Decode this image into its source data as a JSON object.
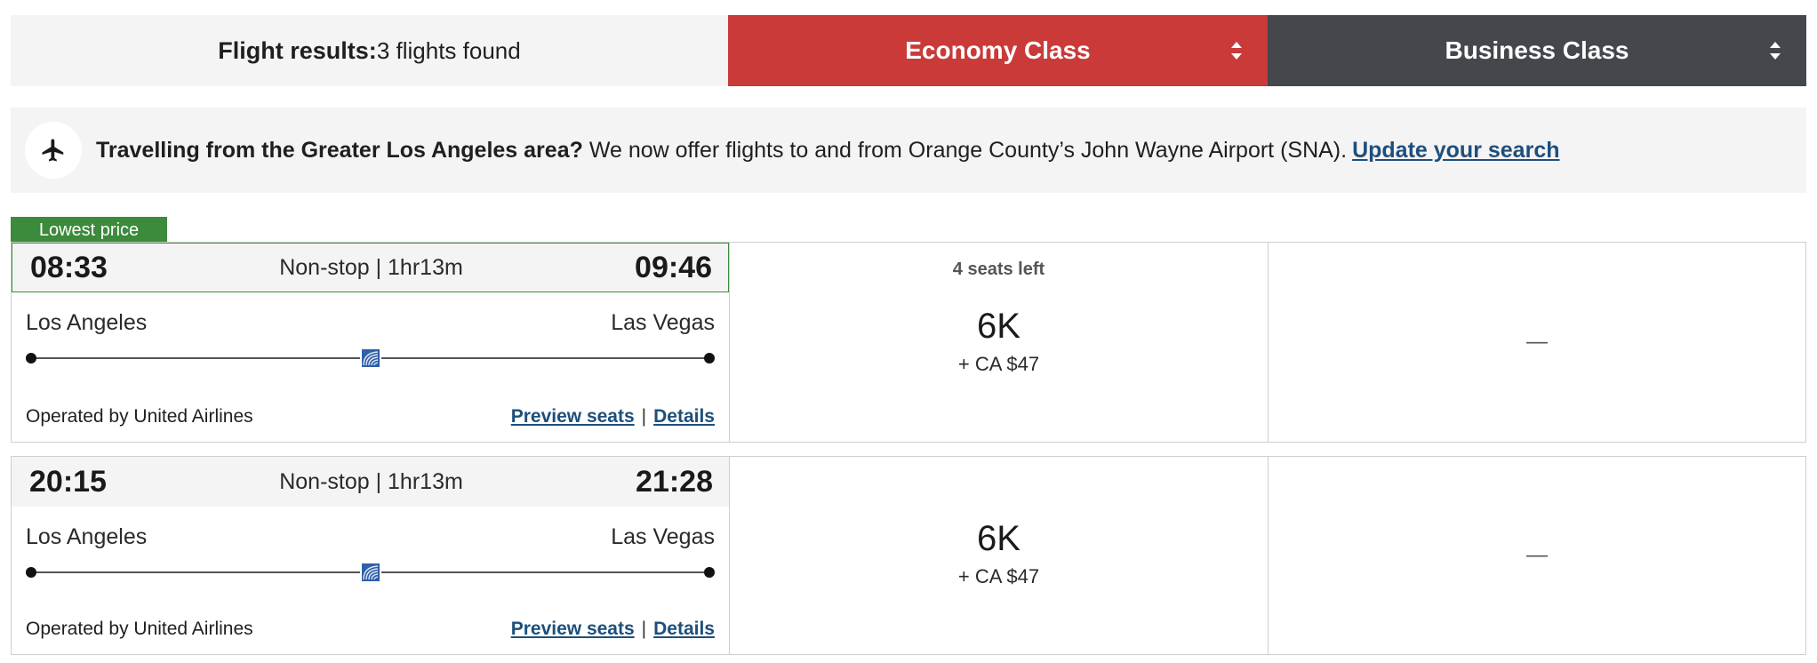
{
  "header": {
    "results_label": "Flight results:",
    "results_count": "3 flights found",
    "economy_label": "Economy Class",
    "business_label": "Business Class",
    "economy_color": "#c93a39",
    "business_color": "#44474c"
  },
  "banner": {
    "icon": "plane-icon",
    "bold_text": "Travelling from the Greater Los Angeles area?",
    "body_text": "We now offer flights to and from Orange County’s John Wayne Airport (SNA).",
    "link_text": "Update your search"
  },
  "flights": [
    {
      "badge": "Lowest price",
      "depart_time": "08:33",
      "stops_duration": "Non-stop | 1hr13m",
      "arrive_time": "09:46",
      "origin": "Los Angeles",
      "destination": "Las Vegas",
      "operator": "Operated by United Airlines",
      "preview_seats": "Preview seats",
      "separator": "|",
      "details": "Details",
      "seats_left": "4 seats left",
      "economy_points": "6K",
      "economy_taxes": "+ CA $47",
      "business_fare": "—"
    },
    {
      "depart_time": "20:15",
      "stops_duration": "Non-stop | 1hr13m",
      "arrive_time": "21:28",
      "origin": "Los Angeles",
      "destination": "Las Vegas",
      "operator": "Operated by United Airlines",
      "preview_seats": "Preview seats",
      "separator": "|",
      "details": "Details",
      "economy_points": "6K",
      "economy_taxes": "+ CA $47",
      "business_fare": "—"
    }
  ]
}
